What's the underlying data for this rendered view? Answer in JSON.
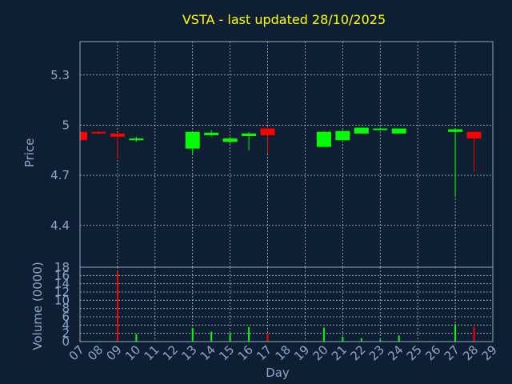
{
  "chart_data": {
    "type": "candlestick",
    "title": "VSTA - last updated 28/10/2025",
    "xlabel": "Day",
    "x_ticks": [
      "07",
      "08",
      "09",
      "10",
      "11",
      "12",
      "13",
      "14",
      "15",
      "16",
      "17",
      "18",
      "19",
      "20",
      "21",
      "22",
      "23",
      "24",
      "25",
      "26",
      "27",
      "28",
      "29"
    ],
    "price_panel": {
      "ylabel": "Price",
      "ylim": [
        4.15,
        5.5
      ],
      "y_ticks": [
        "5.3",
        "5",
        "4.7",
        "4.4"
      ],
      "y_tick_values": [
        5.3,
        5.0,
        4.7,
        4.4
      ],
      "grid": true,
      "candles": [
        {
          "day": 7,
          "open": 4.96,
          "high": 4.96,
          "low": 4.91,
          "close": 4.91
        },
        {
          "day": 8,
          "open": 4.96,
          "high": 4.965,
          "low": 4.945,
          "close": 4.955
        },
        {
          "day": 9,
          "open": 4.95,
          "high": 4.95,
          "low": 4.8,
          "close": 4.93
        },
        {
          "day": 10,
          "open": 4.91,
          "high": 4.93,
          "low": 4.9,
          "close": 4.92
        },
        {
          "day": 13,
          "open": 4.86,
          "high": 4.96,
          "low": 4.82,
          "close": 4.96
        },
        {
          "day": 14,
          "open": 4.94,
          "high": 4.97,
          "low": 4.93,
          "close": 4.955
        },
        {
          "day": 15,
          "open": 4.9,
          "high": 4.93,
          "low": 4.89,
          "close": 4.92
        },
        {
          "day": 16,
          "open": 4.935,
          "high": 4.96,
          "low": 4.85,
          "close": 4.95
        },
        {
          "day": 17,
          "open": 4.98,
          "high": 4.99,
          "low": 4.83,
          "close": 4.94
        },
        {
          "day": 20,
          "open": 4.87,
          "high": 4.96,
          "low": 4.87,
          "close": 4.96
        },
        {
          "day": 21,
          "open": 4.91,
          "high": 4.97,
          "low": 4.91,
          "close": 4.965
        },
        {
          "day": 22,
          "open": 4.95,
          "high": 4.985,
          "low": 4.95,
          "close": 4.985
        },
        {
          "day": 23,
          "open": 4.975,
          "high": 4.985,
          "low": 4.97,
          "close": 4.98
        },
        {
          "day": 24,
          "open": 4.95,
          "high": 4.98,
          "low": 4.95,
          "close": 4.98
        },
        {
          "day": 27,
          "open": 4.96,
          "high": 4.98,
          "low": 4.57,
          "close": 4.975
        },
        {
          "day": 28,
          "open": 4.96,
          "high": 4.96,
          "low": 4.72,
          "close": 4.92
        }
      ]
    },
    "volume_panel": {
      "ylabel": "Volume (0000)",
      "ylim": [
        0,
        18
      ],
      "y_ticks": [
        "18",
        "16",
        "14",
        "12",
        "10",
        "8",
        "6",
        "4",
        "2",
        "0"
      ],
      "y_tick_values": [
        18,
        16,
        14,
        12,
        10,
        8,
        6,
        4,
        2,
        0
      ],
      "grid": true,
      "bars": [
        {
          "day": 7,
          "value": 0.3
        },
        {
          "day": 8,
          "value": 0.2
        },
        {
          "day": 9,
          "value": 17.0
        },
        {
          "day": 10,
          "value": 1.8
        },
        {
          "day": 13,
          "value": 3.3
        },
        {
          "day": 14,
          "value": 2.4
        },
        {
          "day": 15,
          "value": 2.0
        },
        {
          "day": 16,
          "value": 3.5
        },
        {
          "day": 17,
          "value": 2.0
        },
        {
          "day": 20,
          "value": 3.4
        },
        {
          "day": 21,
          "value": 1.2
        },
        {
          "day": 22,
          "value": 0.8
        },
        {
          "day": 23,
          "value": 0.5
        },
        {
          "day": 24,
          "value": 1.5
        },
        {
          "day": 27,
          "value": 4.2
        },
        {
          "day": 28,
          "value": 3.5
        }
      ]
    },
    "colors": {
      "up": "#00ff00",
      "down": "#ff0000",
      "title": "#ffff00",
      "axis": "#8aa8c8",
      "background": "#0f1f33"
    }
  }
}
